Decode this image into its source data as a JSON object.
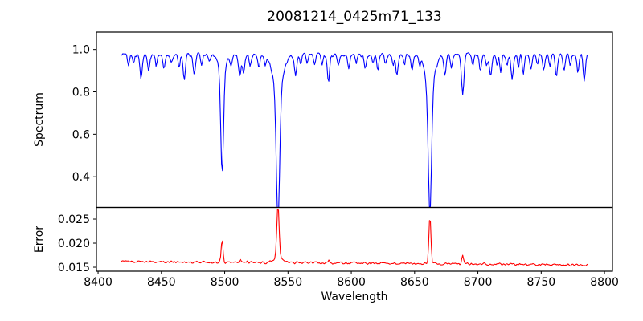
{
  "figure": {
    "background": "#ffffff"
  },
  "chart_data": {
    "type": "line",
    "title": "20081214_0425m71_133",
    "xlabel": "Wavelength",
    "grid": false,
    "legend": null,
    "axis_color": "#000000",
    "text_color": "#000000",
    "xlim": [
      8398.7,
      8806.3
    ],
    "xticks": [
      8400,
      8450,
      8500,
      8550,
      8600,
      8650,
      8700,
      8750,
      8800
    ],
    "xtick_labels": [
      "8400",
      "8450",
      "8500",
      "8550",
      "8600",
      "8650",
      "8700",
      "8750",
      "8800"
    ],
    "x_data_range": [
      8418,
      8787
    ],
    "sample_step": 0.75,
    "panels": [
      {
        "name": "spectrum",
        "ylabel": "Spectrum",
        "ylim": [
          0.255,
          1.082
        ],
        "yticks": [
          0.4,
          0.6,
          0.8,
          1.0
        ],
        "ytick_labels": [
          "0.4",
          "0.6",
          "0.8",
          "1.0"
        ],
        "line_color": "#0000ff",
        "continuum": 0.975,
        "noise_amplitude": 0.011,
        "absorption_lines": [
          [
            8498.0,
            0.5,
            1.1
          ],
          [
            8498.0,
            0.06,
            3.0
          ],
          [
            8542.1,
            0.62,
            1.3
          ],
          [
            8542.1,
            0.16,
            4.0
          ],
          [
            8662.1,
            0.6,
            1.25
          ],
          [
            8662.1,
            0.15,
            3.8
          ],
          [
            8688.0,
            0.19,
            1.0
          ],
          [
            8424,
            0.06,
            0.8
          ],
          [
            8428,
            0.04,
            0.7
          ],
          [
            8434,
            0.11,
            0.9
          ],
          [
            8440,
            0.07,
            0.8
          ],
          [
            8446,
            0.05,
            0.7
          ],
          [
            8452,
            0.07,
            0.8
          ],
          [
            8458,
            0.04,
            0.7
          ],
          [
            8464,
            0.06,
            0.8
          ],
          [
            8468,
            0.12,
            0.9
          ],
          [
            8476,
            0.1,
            0.9
          ],
          [
            8482,
            0.05,
            0.7
          ],
          [
            8488,
            0.04,
            0.7
          ],
          [
            8505,
            0.05,
            0.8
          ],
          [
            8512,
            0.1,
            1.0
          ],
          [
            8515,
            0.09,
            0.9
          ],
          [
            8520,
            0.05,
            0.8
          ],
          [
            8527,
            0.06,
            0.8
          ],
          [
            8532,
            0.04,
            0.7
          ],
          [
            8556,
            0.1,
            0.9
          ],
          [
            8560,
            0.05,
            0.7
          ],
          [
            8565,
            0.04,
            0.7
          ],
          [
            8571,
            0.05,
            0.7
          ],
          [
            8577,
            0.04,
            0.7
          ],
          [
            8582,
            0.13,
            0.9
          ],
          [
            8590,
            0.05,
            0.8
          ],
          [
            8598,
            0.07,
            0.8
          ],
          [
            8604,
            0.04,
            0.7
          ],
          [
            8611,
            0.06,
            0.8
          ],
          [
            8617,
            0.04,
            0.7
          ],
          [
            8621,
            0.08,
            0.8
          ],
          [
            8627,
            0.05,
            0.7
          ],
          [
            8633,
            0.05,
            0.7
          ],
          [
            8636,
            0.1,
            0.9
          ],
          [
            8642,
            0.05,
            0.7
          ],
          [
            8648,
            0.07,
            0.8
          ],
          [
            8654,
            0.04,
            0.7
          ],
          [
            8674,
            0.09,
            0.8
          ],
          [
            8679,
            0.06,
            0.8
          ],
          [
            8696,
            0.06,
            0.8
          ],
          [
            8702,
            0.08,
            0.8
          ],
          [
            8707,
            0.05,
            0.7
          ],
          [
            8710,
            0.1,
            0.9
          ],
          [
            8715,
            0.05,
            0.7
          ],
          [
            8718,
            0.08,
            0.8
          ],
          [
            8723,
            0.06,
            0.7
          ],
          [
            8727,
            0.11,
            0.9
          ],
          [
            8732,
            0.06,
            0.7
          ],
          [
            8736,
            0.09,
            0.8
          ],
          [
            8742,
            0.07,
            0.8
          ],
          [
            8747,
            0.05,
            0.7
          ],
          [
            8752,
            0.08,
            0.8
          ],
          [
            8757,
            0.05,
            0.7
          ],
          [
            8762,
            0.1,
            0.9
          ],
          [
            8768,
            0.07,
            0.8
          ],
          [
            8773,
            0.06,
            0.7
          ],
          [
            8779,
            0.08,
            0.8
          ],
          [
            8784,
            0.12,
            0.9
          ]
        ]
      },
      {
        "name": "error",
        "ylabel": "Error",
        "ylim": [
          0.01417,
          0.02742
        ],
        "yticks": [
          0.015,
          0.02,
          0.025
        ],
        "ytick_labels": [
          "0.015",
          "0.020",
          "0.025"
        ],
        "line_color": "#ff0000",
        "baseline_start": 0.0162,
        "baseline_end": 0.0155,
        "noise_amplitude": 0.0003,
        "emission_peaks": [
          [
            8498.0,
            0.0048,
            0.7
          ],
          [
            8542.1,
            0.0105,
            0.9
          ],
          [
            8542.1,
            0.0012,
            3.0
          ],
          [
            8662.1,
            0.0098,
            0.8
          ],
          [
            8688.0,
            0.0018,
            0.7
          ],
          [
            8582.0,
            0.0006,
            0.7
          ],
          [
            8512.0,
            0.0005,
            0.8
          ]
        ]
      }
    ]
  }
}
